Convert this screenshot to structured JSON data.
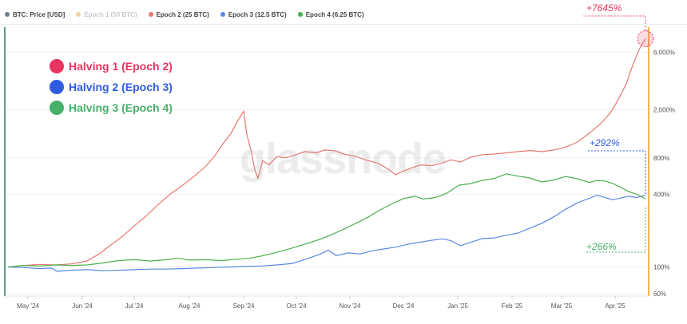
{
  "legend_top": [
    {
      "label": "BTC: Price [USD]",
      "color": "#6f7f8f",
      "faded": false
    },
    {
      "label": "Epoch 1 (50 BTC)",
      "color": "#f0a040",
      "faded": true
    },
    {
      "label": "Epoch 2 (25 BTC)",
      "color": "#e8776f",
      "faded": false
    },
    {
      "label": "Epoch 3 (12.5 BTC)",
      "color": "#5b86e5",
      "faded": false
    },
    {
      "label": "Epoch 4 (6.25 BTC)",
      "color": "#4caf50",
      "faded": false
    }
  ],
  "halvings": [
    {
      "label": "Halving 1 (Epoch 2)",
      "color": "#e8345f"
    },
    {
      "label": "Halving 2 (Epoch 3)",
      "color": "#2e5be0"
    },
    {
      "label": "Halving 3 (Epoch 4)",
      "color": "#47b06a"
    }
  ],
  "watermark": "glassnode",
  "annotations": {
    "red": "+7645%",
    "blue": "+292%",
    "green": "+266%"
  },
  "chart_data": {
    "type": "line",
    "x_ticks": [
      "May '24",
      "Jun '24",
      "Jul '24",
      "Aug '24",
      "Sep '24",
      "Oct '24",
      "Nov '24",
      "Dec '24",
      "Jan '25",
      "Feb '25",
      "Mar '25",
      "Apr '25"
    ],
    "y_ticks": [
      "6,000%",
      "2,000%",
      "800%",
      "400%",
      "100%",
      "60%"
    ],
    "y_scale": "log",
    "series": [
      {
        "name": "Epoch 2 (25 BTC)",
        "color": "#e8776f",
        "points": [
          [
            0,
            100
          ],
          [
            20,
            103
          ],
          [
            40,
            105
          ],
          [
            60,
            104
          ],
          [
            80,
            106
          ],
          [
            100,
            112
          ],
          [
            115,
            128
          ],
          [
            130,
            152
          ],
          [
            145,
            180
          ],
          [
            160,
            220
          ],
          [
            175,
            265
          ],
          [
            190,
            330
          ],
          [
            205,
            400
          ],
          [
            220,
            470
          ],
          [
            235,
            560
          ],
          [
            250,
            680
          ],
          [
            262,
            840
          ],
          [
            272,
            1050
          ],
          [
            282,
            1280
          ],
          [
            290,
            1600
          ],
          [
            298,
            1950
          ],
          [
            302,
            1250
          ],
          [
            308,
            880
          ],
          [
            312,
            640
          ],
          [
            316,
            540
          ],
          [
            322,
            760
          ],
          [
            330,
            700
          ],
          [
            340,
            820
          ],
          [
            350,
            800
          ],
          [
            362,
            840
          ],
          [
            375,
            900
          ],
          [
            390,
            880
          ],
          [
            400,
            930
          ],
          [
            412,
            920
          ],
          [
            425,
            860
          ],
          [
            440,
            820
          ],
          [
            455,
            760
          ],
          [
            468,
            720
          ],
          [
            480,
            650
          ],
          [
            490,
            580
          ],
          [
            500,
            620
          ],
          [
            510,
            660
          ],
          [
            522,
            700
          ],
          [
            535,
            690
          ],
          [
            548,
            720
          ],
          [
            560,
            770
          ],
          [
            572,
            740
          ],
          [
            585,
            810
          ],
          [
            600,
            850
          ],
          [
            615,
            860
          ],
          [
            630,
            880
          ],
          [
            645,
            900
          ],
          [
            660,
            920
          ],
          [
            675,
            900
          ],
          [
            690,
            930
          ],
          [
            705,
            980
          ],
          [
            720,
            1080
          ],
          [
            735,
            1280
          ],
          [
            750,
            1550
          ],
          [
            762,
            1900
          ],
          [
            772,
            2450
          ],
          [
            782,
            3300
          ],
          [
            790,
            4700
          ],
          [
            798,
            6300
          ],
          [
            806,
            7745
          ]
        ]
      },
      {
        "name": "Epoch 3 (12.5 BTC)",
        "color": "#5b86e5",
        "points": [
          [
            0,
            100
          ],
          [
            20,
            99
          ],
          [
            40,
            97
          ],
          [
            55,
            98
          ],
          [
            62,
            92
          ],
          [
            80,
            94
          ],
          [
            100,
            95
          ],
          [
            120,
            93
          ],
          [
            140,
            94
          ],
          [
            160,
            95
          ],
          [
            180,
            96
          ],
          [
            200,
            96
          ],
          [
            220,
            97
          ],
          [
            240,
            98
          ],
          [
            260,
            99
          ],
          [
            280,
            100
          ],
          [
            300,
            101
          ],
          [
            320,
            102
          ],
          [
            340,
            104
          ],
          [
            360,
            107
          ],
          [
            380,
            118
          ],
          [
            395,
            128
          ],
          [
            405,
            138
          ],
          [
            415,
            124
          ],
          [
            430,
            131
          ],
          [
            445,
            128
          ],
          [
            460,
            136
          ],
          [
            475,
            141
          ],
          [
            490,
            146
          ],
          [
            505,
            154
          ],
          [
            520,
            160
          ],
          [
            535,
            166
          ],
          [
            550,
            171
          ],
          [
            560,
            165
          ],
          [
            572,
            150
          ],
          [
            585,
            160
          ],
          [
            600,
            172
          ],
          [
            615,
            174
          ],
          [
            630,
            183
          ],
          [
            645,
            191
          ],
          [
            660,
            210
          ],
          [
            675,
            230
          ],
          [
            690,
            260
          ],
          [
            705,
            300
          ],
          [
            720,
            340
          ],
          [
            735,
            370
          ],
          [
            745,
            392
          ],
          [
            755,
            375
          ],
          [
            765,
            360
          ],
          [
            775,
            372
          ],
          [
            785,
            385
          ],
          [
            795,
            375
          ],
          [
            806,
            392
          ]
        ]
      },
      {
        "name": "Epoch 4 (6.25 BTC)",
        "color": "#4caf50",
        "points": [
          [
            0,
            100
          ],
          [
            20,
            103
          ],
          [
            40,
            102
          ],
          [
            60,
            104
          ],
          [
            80,
            103
          ],
          [
            100,
            104
          ],
          [
            120,
            108
          ],
          [
            140,
            113
          ],
          [
            160,
            115
          ],
          [
            180,
            112
          ],
          [
            200,
            115
          ],
          [
            215,
            118
          ],
          [
            230,
            114
          ],
          [
            250,
            115
          ],
          [
            270,
            113
          ],
          [
            290,
            116
          ],
          [
            305,
            118
          ],
          [
            320,
            123
          ],
          [
            335,
            130
          ],
          [
            350,
            138
          ],
          [
            365,
            147
          ],
          [
            380,
            158
          ],
          [
            395,
            170
          ],
          [
            410,
            186
          ],
          [
            425,
            206
          ],
          [
            440,
            230
          ],
          [
            455,
            258
          ],
          [
            470,
            295
          ],
          [
            485,
            332
          ],
          [
            500,
            368
          ],
          [
            515,
            385
          ],
          [
            525,
            365
          ],
          [
            540,
            375
          ],
          [
            555,
            408
          ],
          [
            570,
            475
          ],
          [
            585,
            490
          ],
          [
            600,
            520
          ],
          [
            615,
            540
          ],
          [
            630,
            590
          ],
          [
            645,
            565
          ],
          [
            660,
            545
          ],
          [
            675,
            505
          ],
          [
            690,
            525
          ],
          [
            705,
            560
          ],
          [
            715,
            545
          ],
          [
            725,
            525
          ],
          [
            735,
            500
          ],
          [
            745,
            520
          ],
          [
            755,
            515
          ],
          [
            765,
            490
          ],
          [
            775,
            455
          ],
          [
            785,
            420
          ],
          [
            795,
            400
          ],
          [
            806,
            366
          ]
        ]
      }
    ]
  }
}
